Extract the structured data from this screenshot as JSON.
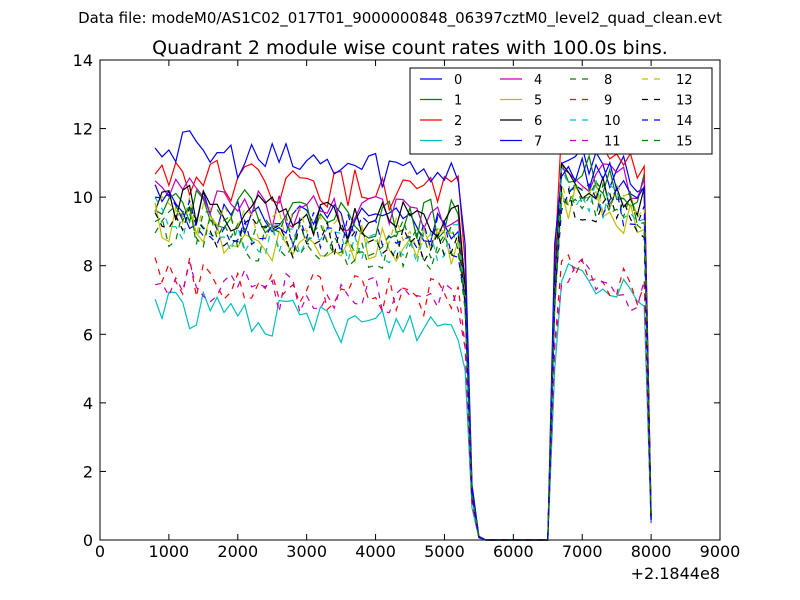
{
  "chart_data": {
    "type": "line",
    "suptitle": "Data file: modeM0/AS1C02_017T01_9000000848_06397cztM0_level2_quad_clean.evt",
    "title": "Quadrant 2 module wise count rates with 100.0s bins.",
    "xlabel": "",
    "ylabel": "",
    "x_offset_label": "+2.1844e8",
    "xlim": [
      0,
      9000
    ],
    "ylim": [
      0,
      14
    ],
    "x_ticks": [
      "0",
      "1000",
      "2000",
      "3000",
      "4000",
      "5000",
      "6000",
      "7000",
      "8000",
      "9000"
    ],
    "y_ticks": [
      "0",
      "2",
      "4",
      "6",
      "8",
      "10",
      "12",
      "14"
    ],
    "grid": false,
    "legend_position": "top-right",
    "legend_columns": 4,
    "seg1": {
      "x_start": 800,
      "x_step": 100,
      "count": 45
    },
    "gap_x": [
      5300,
      5400,
      5500,
      5600,
      5700,
      5800,
      5900,
      6000,
      6100,
      6200,
      6300,
      6400,
      6500,
      6600
    ],
    "gap_frac": [
      0.8,
      0.15,
      0.01,
      0,
      0,
      0,
      0,
      0,
      0,
      0,
      0,
      0,
      0,
      0.8
    ],
    "seg2": {
      "x_start": 6700,
      "x_step": 100,
      "count": 13
    },
    "end_x": 8000,
    "series": [
      {
        "name": "0",
        "color": "#0000ff",
        "dash": false,
        "level1": 9.1,
        "level2": 11.2,
        "end": 0.6
      },
      {
        "name": "1",
        "color": "#008000",
        "dash": false,
        "level1": 9.3,
        "level2": 10.9,
        "end": 0.7
      },
      {
        "name": "2",
        "color": "#ff0000",
        "dash": false,
        "level1": 10.1,
        "level2": 11.6,
        "end": 0.8
      },
      {
        "name": "3",
        "color": "#00bfbf",
        "dash": false,
        "level1": 6.2,
        "level2": 8.0,
        "end": 0.5
      },
      {
        "name": "4",
        "color": "#bf00bf",
        "dash": false,
        "level1": 9.4,
        "level2": 11.0,
        "end": 0.7
      },
      {
        "name": "5",
        "color": "#bfbf00",
        "dash": false,
        "level1": 8.5,
        "level2": 10.0,
        "end": 0.6
      },
      {
        "name": "6",
        "color": "#000000",
        "dash": false,
        "level1": 9.2,
        "level2": 10.5,
        "end": 0.7
      },
      {
        "name": "7",
        "color": "#0000ff",
        "dash": false,
        "level1": 10.8,
        "level2": 11.0,
        "end": 0.6
      },
      {
        "name": "8",
        "color": "#008000",
        "dash": true,
        "level1": 8.4,
        "level2": 10.2,
        "end": 0.6
      },
      {
        "name": "9",
        "color": "#ff0000",
        "dash": true,
        "level1": 7.1,
        "level2": 7.9,
        "end": 0.5
      },
      {
        "name": "10",
        "color": "#00bfbf",
        "dash": true,
        "level1": 8.6,
        "level2": 10.3,
        "end": 0.55
      },
      {
        "name": "11",
        "color": "#bf00bf",
        "dash": true,
        "level1": 7.0,
        "level2": 7.8,
        "end": 0.5
      },
      {
        "name": "12",
        "color": "#bfbf00",
        "dash": true,
        "level1": 8.9,
        "level2": 10.4,
        "end": 0.7
      },
      {
        "name": "13",
        "color": "#000000",
        "dash": true,
        "level1": 8.6,
        "level2": 10.0,
        "end": 0.6
      },
      {
        "name": "14",
        "color": "#0000ff",
        "dash": true,
        "level1": 8.8,
        "level2": 10.2,
        "end": 0.5
      },
      {
        "name": "15",
        "color": "#008000",
        "dash": true,
        "level1": 8.7,
        "level2": 10.2,
        "end": 0.7
      }
    ]
  }
}
